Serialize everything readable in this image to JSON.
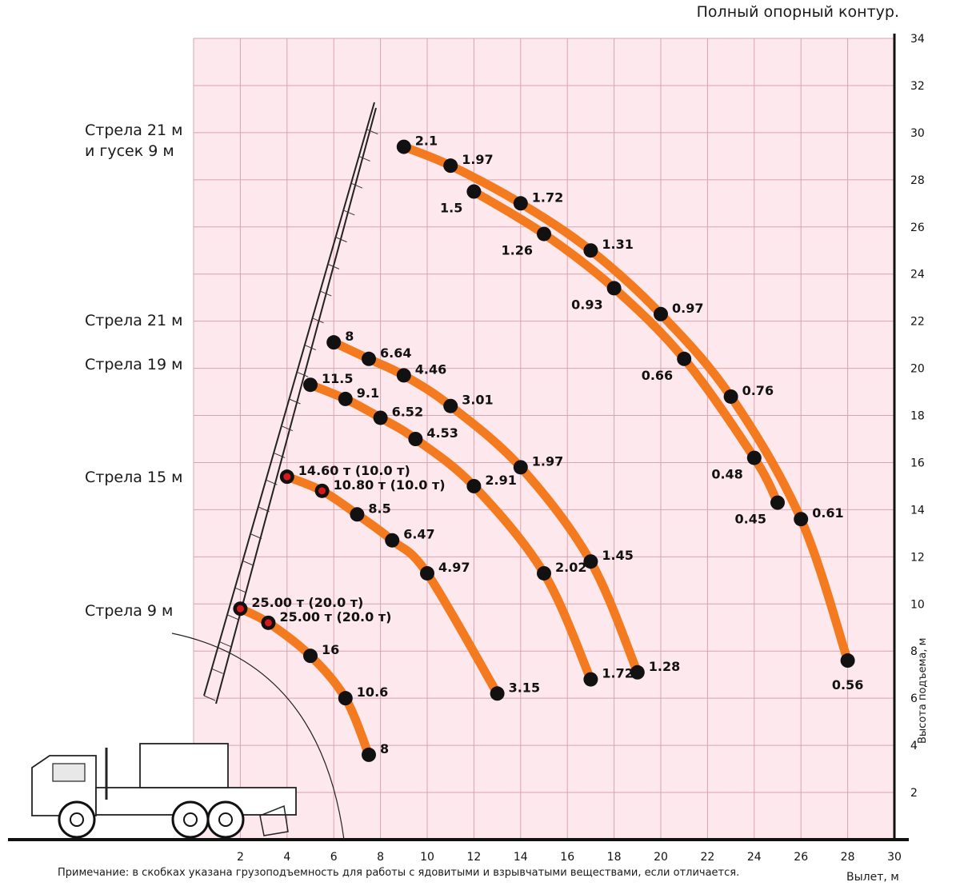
{
  "title": "Полный опорный контур.",
  "note": "Примечание: в скобках указана грузоподъемность для работы с ядовитыми и взрывчатыми веществами, если отличается.",
  "chart_data": {
    "type": "line",
    "xlabel": "Вылет, м",
    "ylabel": "Высота подъема, м",
    "xlim": [
      0,
      30
    ],
    "ylim": [
      0,
      34
    ],
    "x_ticks": [
      "2",
      "4",
      "6",
      "8",
      "10",
      "12",
      "14",
      "16",
      "18",
      "20",
      "22",
      "24",
      "26",
      "28",
      "30"
    ],
    "y_ticks": [
      "2",
      "4",
      "6",
      "8",
      "10",
      "12",
      "14",
      "16",
      "18",
      "20",
      "22",
      "24",
      "26",
      "28",
      "30",
      "32",
      "34"
    ],
    "grid": true,
    "colors": {
      "curve": "#f47a1f",
      "point": "#111111",
      "point_alt": "#d7191c",
      "grid": "#d9a3ad",
      "background": "#fde8ee"
    },
    "boom_labels": [
      {
        "line1": "Стрела 21 м",
        "line2": "и гусек 9 м"
      },
      {
        "line1": "Стрела 21 м"
      },
      {
        "line1": "Стрела 19 м"
      },
      {
        "line1": "Стрела 15 м"
      },
      {
        "line1": "Стрела 9 м"
      }
    ],
    "series": [
      {
        "label": "Стрела 9 м",
        "points": [
          {
            "x": 2.0,
            "y": 9.8,
            "load": "25.00 т (20.0 т)",
            "red": true
          },
          {
            "x": 3.2,
            "y": 9.2,
            "load": "25.00 т (20.0 т)",
            "red": true
          },
          {
            "x": 5.0,
            "y": 7.8,
            "load": "16"
          },
          {
            "x": 6.5,
            "y": 6.0,
            "load": "10.6"
          },
          {
            "x": 7.5,
            "y": 3.6,
            "load": "8"
          }
        ]
      },
      {
        "label": "Стрела 15 м",
        "points": [
          {
            "x": 4.0,
            "y": 15.4,
            "load": "14.60 т (10.0 т)",
            "red": true
          },
          {
            "x": 5.5,
            "y": 14.8,
            "load": "10.80 т (10.0 т)",
            "red": true
          },
          {
            "x": 7.0,
            "y": 13.8,
            "load": "8.5"
          },
          {
            "x": 8.5,
            "y": 12.7,
            "load": "6.47"
          },
          {
            "x": 10.0,
            "y": 11.3,
            "load": "4.97"
          },
          {
            "x": 13.0,
            "y": 6.2,
            "load": "3.15"
          }
        ]
      },
      {
        "label": "Стрела 19 м",
        "points": [
          {
            "x": 5.0,
            "y": 19.3,
            "load": "11.5"
          },
          {
            "x": 6.5,
            "y": 18.7,
            "load": "9.1"
          },
          {
            "x": 8.0,
            "y": 17.9,
            "load": "6.52"
          },
          {
            "x": 9.5,
            "y": 17.0,
            "load": "4.53"
          },
          {
            "x": 12.0,
            "y": 15.0,
            "load": "2.91"
          },
          {
            "x": 15.0,
            "y": 11.3,
            "load": "2.02"
          },
          {
            "x": 17.0,
            "y": 6.8,
            "load": "1.72"
          }
        ]
      },
      {
        "label": "Стрела 21 м",
        "points": [
          {
            "x": 6.0,
            "y": 21.1,
            "load": "8"
          },
          {
            "x": 7.5,
            "y": 20.4,
            "load": "6.64"
          },
          {
            "x": 9.0,
            "y": 19.7,
            "load": "4.46"
          },
          {
            "x": 11.0,
            "y": 18.4,
            "load": "3.01"
          },
          {
            "x": 14.0,
            "y": 15.8,
            "load": "1.97"
          },
          {
            "x": 17.0,
            "y": 11.8,
            "load": "1.45"
          },
          {
            "x": 19.0,
            "y": 7.1,
            "load": "1.28"
          }
        ]
      },
      {
        "label": "Стрела 21 м и гусек 9 м",
        "points": [
          {
            "x": 9.0,
            "y": 29.4,
            "load": "2.1"
          },
          {
            "x": 11.0,
            "y": 28.6,
            "load": "1.97"
          },
          {
            "x": 14.0,
            "y": 27.0,
            "load": "1.72"
          },
          {
            "x": 17.0,
            "y": 25.0,
            "load": "1.31"
          },
          {
            "x": 20.0,
            "y": 22.3,
            "load": "0.97"
          },
          {
            "x": 23.0,
            "y": 18.8,
            "load": "0.76"
          },
          {
            "x": 26.0,
            "y": 13.6,
            "load": "0.61"
          },
          {
            "x": 28.0,
            "y": 7.6,
            "load": "0.56"
          }
        ]
      },
      {
        "label": "Стрела 21 м и гусек 9 м (inner)",
        "points": [
          {
            "x": 12.0,
            "y": 27.5,
            "load": "1.5"
          },
          {
            "x": 15.0,
            "y": 25.7,
            "load": "1.26"
          },
          {
            "x": 18.0,
            "y": 23.4,
            "load": "0.93"
          },
          {
            "x": 21.0,
            "y": 20.4,
            "load": "0.66"
          },
          {
            "x": 24.0,
            "y": 16.2,
            "load": "0.48"
          },
          {
            "x": 25.0,
            "y": 14.3,
            "load": "0.45"
          }
        ]
      }
    ]
  }
}
